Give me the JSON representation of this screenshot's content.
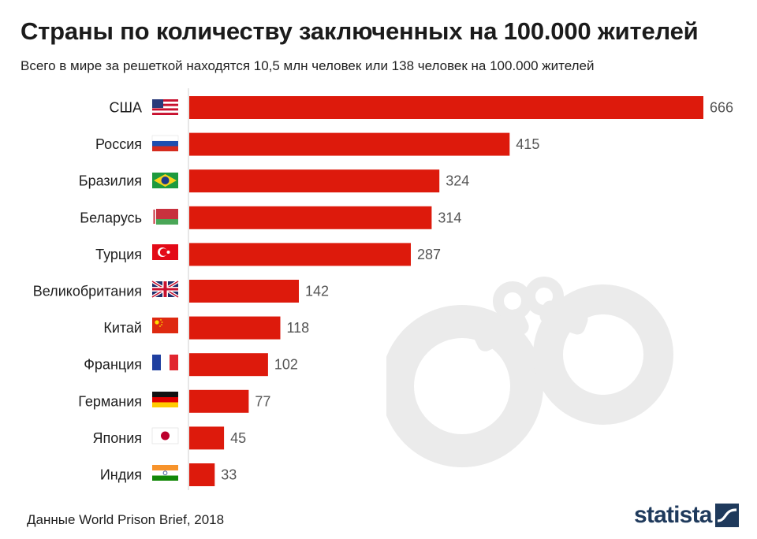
{
  "header": {
    "title": "Страны по количеству заключенных на 100.000 жителей",
    "subtitle": "Всего в мире за решеткой находятся 10,5 млн человек или 138 человек на 100.000 жителей"
  },
  "footer": {
    "source": "Данные World Prison Brief, 2018",
    "logo": "statista"
  },
  "colors": {
    "bar": "#dd1a0c",
    "watermark": "#ebebeb",
    "axis": "#cfcfcf",
    "logo": "#1f3a5c"
  },
  "chart_data": {
    "type": "bar",
    "orientation": "horizontal",
    "title": "Страны по количеству заключенных на 100.000 жителей",
    "subtitle": "Всего в мире за решеткой находятся 10,5 млн человек или 138 человек на 100.000 жителей",
    "xlabel": "",
    "ylabel": "",
    "xlim": [
      0,
      666
    ],
    "grid": false,
    "legend": "none",
    "categories": [
      "США",
      "Россия",
      "Бразилия",
      "Беларусь",
      "Турция",
      "Великобритания",
      "Китай",
      "Франция",
      "Германия",
      "Япония",
      "Индия"
    ],
    "values": [
      666,
      415,
      324,
      314,
      287,
      142,
      118,
      102,
      77,
      45,
      33
    ],
    "flags": [
      "us-flag-icon",
      "russia-flag-icon",
      "brazil-flag-icon",
      "belarus-flag-icon",
      "turkey-flag-icon",
      "uk-flag-icon",
      "china-flag-icon",
      "france-flag-icon",
      "germany-flag-icon",
      "japan-flag-icon",
      "india-flag-icon"
    ],
    "source": "Данные World Prison Brief, 2018"
  }
}
